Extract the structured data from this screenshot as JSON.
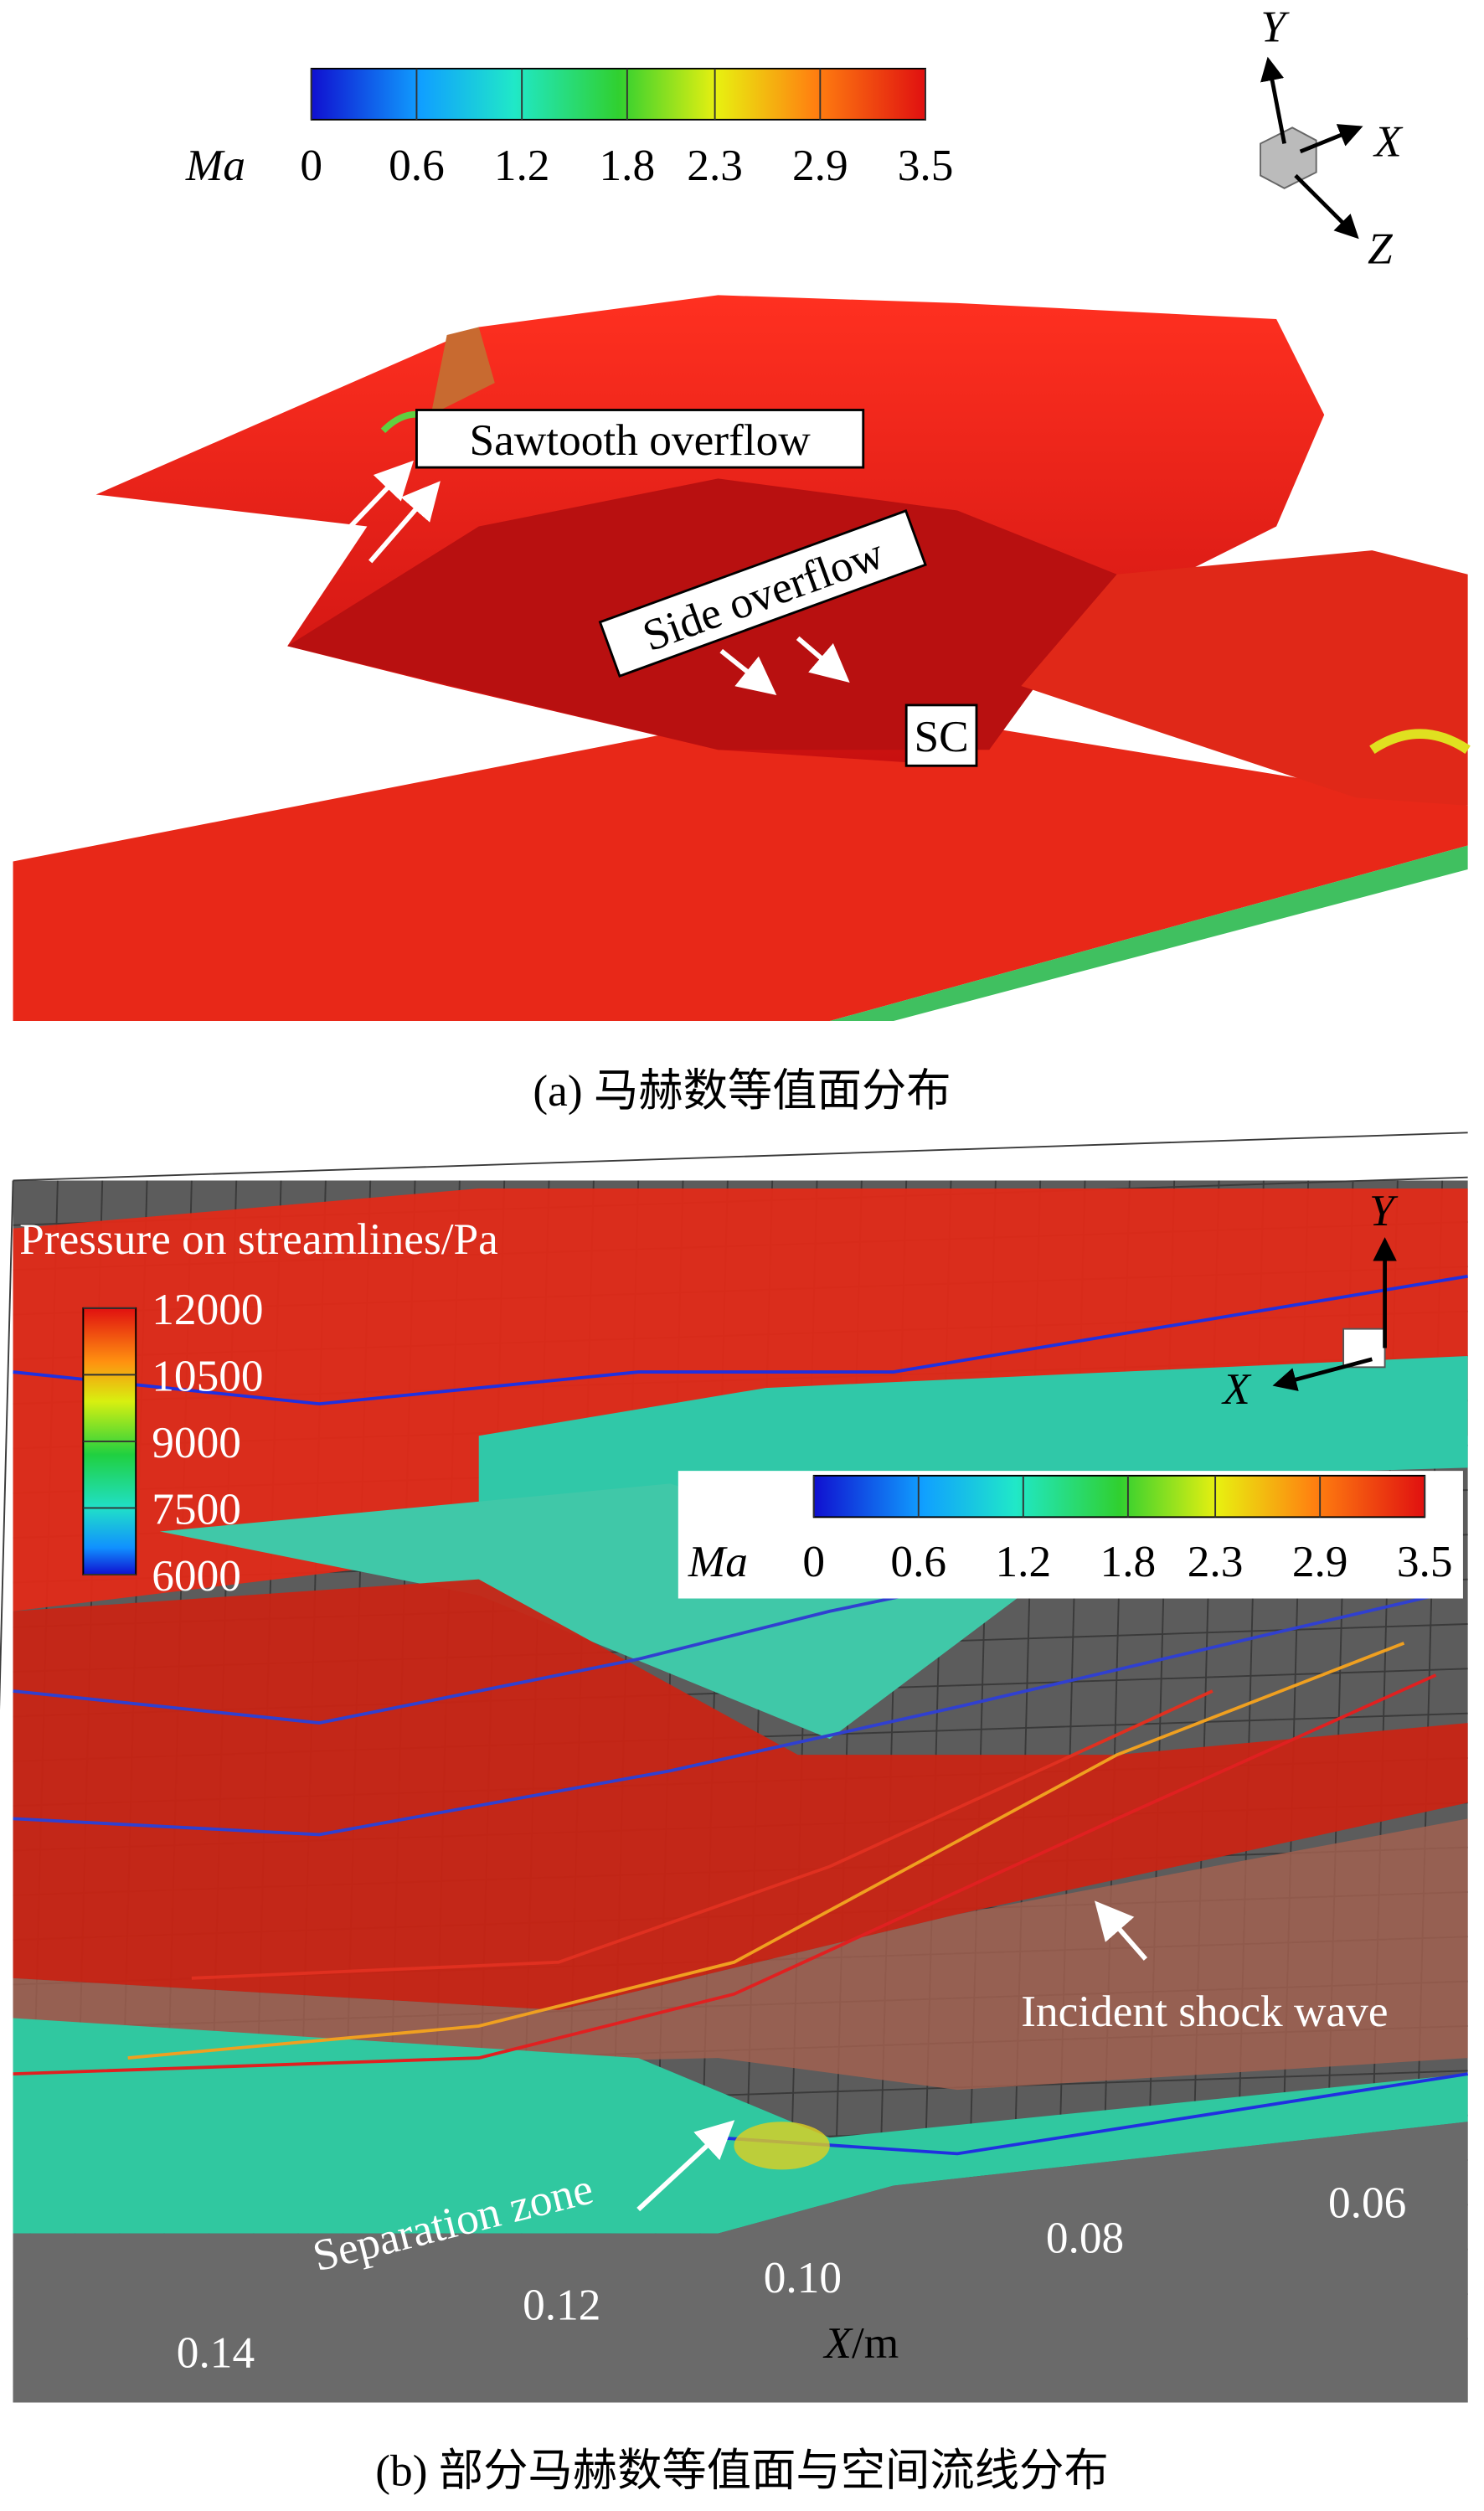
{
  "panel_a": {
    "colorbar": {
      "label": "Ma",
      "ticks": [
        0,
        0.6,
        1.2,
        1.8,
        2.3,
        2.9,
        3.5
      ]
    },
    "axes": {
      "y": "Y",
      "x": "X",
      "z": "Z"
    },
    "annotations": [
      "Sawtooth overflow",
      "Side overflow",
      "SC"
    ],
    "caption": "(a) 马赫数等值面分布"
  },
  "panel_b": {
    "pressure_colorbar": {
      "title": "Pressure on streamlines/Pa",
      "ticks": [
        12000,
        10500,
        9000,
        7500,
        6000
      ]
    },
    "ma_colorbar": {
      "label": "Ma",
      "ticks": [
        0,
        0.6,
        1.2,
        1.8,
        2.3,
        2.9,
        3.5
      ]
    },
    "axes": {
      "y": "Y",
      "x": "X"
    },
    "annotations": [
      "Incident shock wave",
      "Separation zone"
    ],
    "x_axis": {
      "ticks": [
        "0.14",
        "0.12",
        "0.10",
        "0.08",
        "0.06"
      ],
      "label_var": "X",
      "label_unit": "/m"
    },
    "caption": "(b) 部分马赫数等值面与空间流线分布"
  }
}
